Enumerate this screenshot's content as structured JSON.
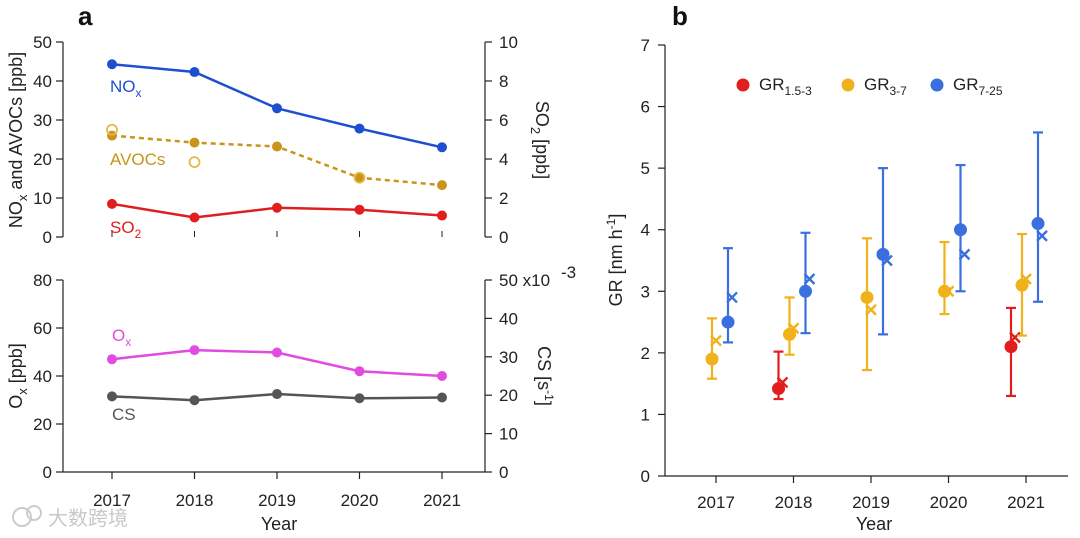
{
  "panel_a_label": "a",
  "panel_b_label": "b",
  "watermark": "大数跨境",
  "chart_data": [
    {
      "id": "a-top",
      "type": "line",
      "xlabel": "Year",
      "x": [
        2017,
        2018,
        2019,
        2020,
        2021
      ],
      "ylabel_left": "NOx and AVOCs [ppb]",
      "ylabel_right": "SO2 [ppb]",
      "ylim_left": [
        0,
        50
      ],
      "ylim_right": [
        0,
        10
      ],
      "yticks_left": [
        0,
        10,
        20,
        30,
        40,
        50
      ],
      "yticks_right": [
        0,
        2,
        4,
        6,
        8,
        10
      ],
      "series": [
        {
          "name": "NOx",
          "axis": "left",
          "color": "#1f4fd1",
          "style": "solid",
          "values": [
            44.3,
            42.3,
            33.0,
            27.8,
            23.0
          ]
        },
        {
          "name": "AVOCs",
          "axis": "left",
          "color": "#c8941a",
          "style": "dashed",
          "values": [
            26.0,
            24.2,
            23.2,
            15.2,
            13.3
          ]
        },
        {
          "name": "AVOCs (open circles)",
          "axis": "left",
          "color": "#e8b84a",
          "marker": "open",
          "values": [
            27.5,
            19.2,
            null,
            15.2,
            null
          ]
        },
        {
          "name": "SO2",
          "axis": "right",
          "color": "#e01e1e",
          "style": "solid",
          "values": [
            1.7,
            1.0,
            1.5,
            1.4,
            1.1
          ]
        }
      ],
      "series_labels": [
        {
          "text": "NO",
          "sub": "x",
          "color": "#1f4fd1"
        },
        {
          "text": "AVOCs",
          "sub": "",
          "color": "#c8941a"
        },
        {
          "text": "SO",
          "sub": "2",
          "color": "#e01e1e"
        }
      ]
    },
    {
      "id": "a-bottom",
      "type": "line",
      "xlabel": "Year",
      "x": [
        2017,
        2018,
        2019,
        2020,
        2021
      ],
      "xticks": [
        "2017",
        "2018",
        "2019",
        "2020",
        "2021"
      ],
      "ylabel_left": "Ox [ppb]",
      "ylabel_right": "CS [s^-1]",
      "ylim_left": [
        0,
        80
      ],
      "ylim_right": [
        0,
        0.05
      ],
      "yticks_left": [
        0,
        20,
        40,
        60,
        80
      ],
      "yticks_right_labels": [
        "0",
        "10",
        "20",
        "30",
        "40",
        "50 x10"
      ],
      "right_multiplier": "-3",
      "series": [
        {
          "name": "Ox",
          "axis": "left",
          "color": "#e14be0",
          "style": "solid",
          "values": [
            47.0,
            50.8,
            49.8,
            42.0,
            40.0
          ]
        },
        {
          "name": "CS",
          "axis": "right",
          "color": "#555555",
          "style": "solid",
          "values": [
            0.0197,
            0.0187,
            0.0203,
            0.0192,
            0.0194
          ]
        }
      ],
      "series_labels": [
        {
          "text": "O",
          "sub": "x",
          "color": "#e14be0"
        },
        {
          "text": "CS",
          "sub": "",
          "color": "#555555"
        }
      ]
    },
    {
      "id": "b",
      "type": "scatter",
      "xlabel": "Year",
      "ylabel": "GR [nm h",
      "ylabel_sup": "-1",
      "ylabel_end": "]",
      "categories": [
        "2017",
        "2018",
        "2019",
        "2020",
        "2021"
      ],
      "ylim": [
        0,
        7
      ],
      "yticks": [
        0,
        1,
        2,
        3,
        4,
        5,
        6,
        7
      ],
      "legend": "top",
      "series": [
        {
          "name": "GR1.5-3",
          "label": "GR",
          "sub": "1.5-3",
          "color": "#e01e1e",
          "mean": [
            null,
            1.42,
            null,
            null,
            2.1
          ],
          "median": [
            null,
            1.52,
            null,
            null,
            2.25
          ],
          "lo": [
            null,
            1.25,
            null,
            null,
            1.3
          ],
          "hi": [
            null,
            2.02,
            null,
            null,
            2.73
          ]
        },
        {
          "name": "GR3-7",
          "label": "GR",
          "sub": "3-7",
          "color": "#f0b21a",
          "mean": [
            1.9,
            2.3,
            2.9,
            3.0,
            3.1
          ],
          "median": [
            2.2,
            2.4,
            2.7,
            3.0,
            3.2
          ],
          "lo": [
            1.58,
            1.97,
            1.72,
            2.63,
            2.28
          ],
          "hi": [
            2.56,
            2.9,
            3.86,
            3.8,
            3.93
          ]
        },
        {
          "name": "GR7-25",
          "label": "GR",
          "sub": "7-25",
          "color": "#3a6fe0",
          "mean": [
            2.5,
            3.0,
            3.6,
            4.0,
            4.1
          ],
          "median": [
            2.9,
            3.2,
            3.5,
            3.6,
            3.9
          ],
          "lo": [
            2.17,
            2.32,
            2.3,
            3.0,
            2.83
          ],
          "hi": [
            3.7,
            3.95,
            5.0,
            5.05,
            5.58
          ]
        }
      ]
    }
  ]
}
